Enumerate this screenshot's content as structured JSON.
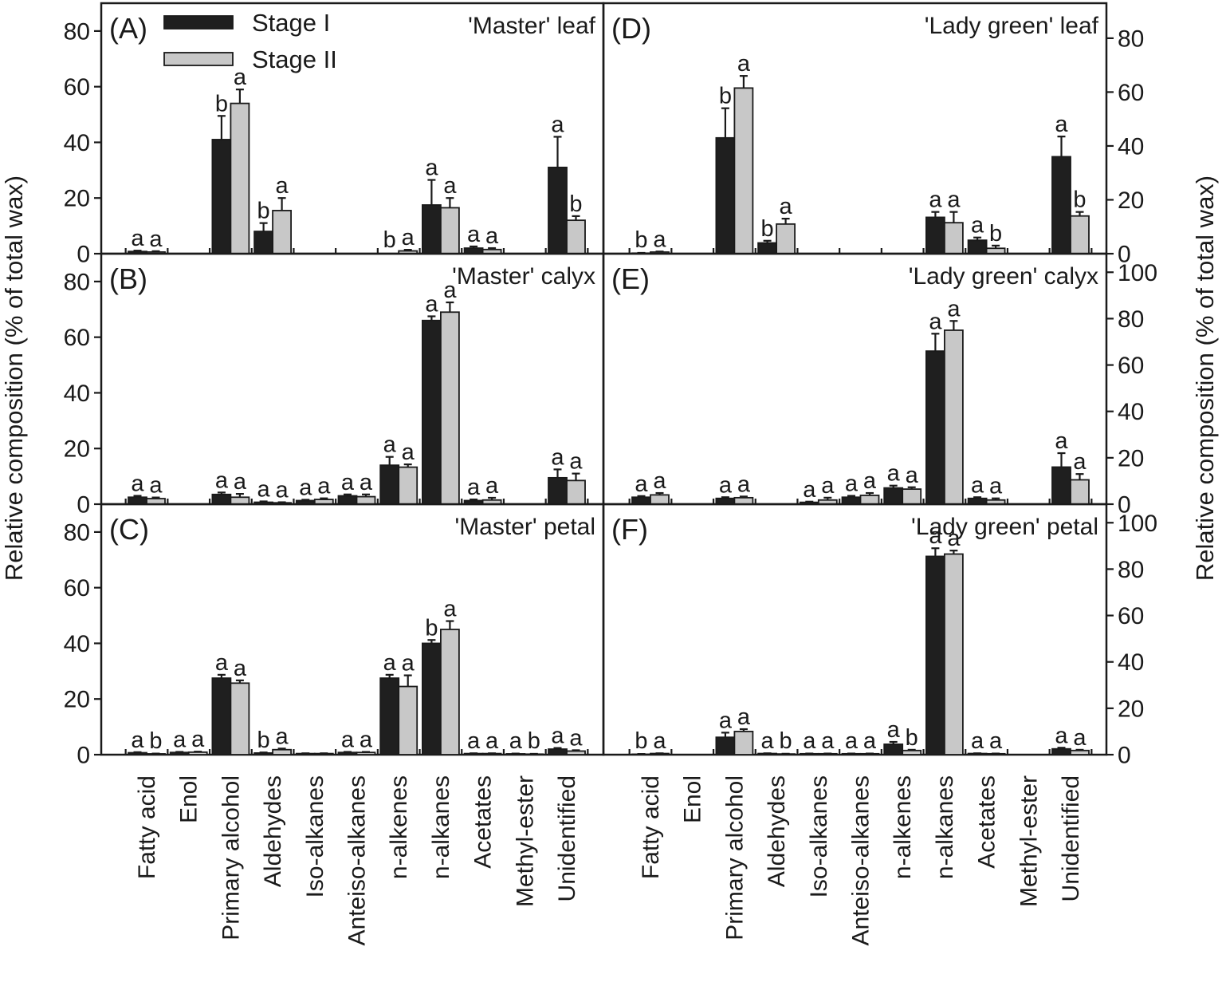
{
  "chart_data": {
    "type": "bar",
    "ylabel_left": "Relative composition (% of total wax)",
    "ylabel_right": "Relative composition (% of total wax)",
    "categories": [
      "Fatty acid",
      "Enol",
      "Primary alcohol",
      "Aldehydes",
      "Iso-alkanes",
      "Anteiso-alkanes",
      "n-alkenes",
      "n-alkanes",
      "Acetates",
      "Methyl-ester",
      "Unidentified"
    ],
    "legend": {
      "position": "top-left",
      "entries": [
        {
          "name": "Stage I",
          "color": "#1f1f1f"
        },
        {
          "name": "Stage II",
          "color": "#c8c8c8"
        }
      ]
    },
    "panels": [
      {
        "label": "(A)",
        "title": "'Master' leaf",
        "ylim": [
          0,
          90
        ],
        "yticks": [
          0,
          20,
          40,
          60,
          80
        ],
        "axis_side": "left",
        "series": [
          {
            "name": "Stage I",
            "values": [
              0.8,
              null,
              41,
              8,
              null,
              null,
              null,
              17.5,
              2,
              null,
              31
            ],
            "errors": [
              0.3,
              null,
              8.5,
              3,
              null,
              null,
              null,
              9,
              0.6,
              null,
              11
            ],
            "letters": [
              "a",
              "",
              "b",
              "b",
              "",
              "",
              "b",
              "a",
              "a",
              "",
              "a"
            ]
          },
          {
            "name": "Stage II",
            "values": [
              0.6,
              null,
              54,
              15.5,
              null,
              null,
              1,
              16.5,
              1.5,
              null,
              12
            ],
            "errors": [
              0.3,
              null,
              5,
              4.5,
              null,
              null,
              0.4,
              3.5,
              0.5,
              null,
              1.5
            ],
            "letters": [
              "a",
              "",
              "a",
              "a",
              "",
              "",
              "a",
              "a",
              "a",
              "",
              "b"
            ]
          }
        ]
      },
      {
        "label": "(B)",
        "title": "'Master' calyx",
        "ylim": [
          0,
          90
        ],
        "yticks": [
          0,
          20,
          40,
          60,
          80
        ],
        "axis_side": "left",
        "series": [
          {
            "name": "Stage I",
            "values": [
              2.5,
              null,
              3.5,
              0.7,
              1.3,
              3,
              14,
              66,
              1.3,
              null,
              9.5
            ],
            "errors": [
              0.5,
              null,
              0.7,
              0.3,
              0.3,
              0.5,
              3,
              1.5,
              0.4,
              null,
              3
            ],
            "letters": [
              "a",
              "",
              "a",
              "a",
              "a",
              "a",
              "a",
              "a",
              "a",
              "",
              "a"
            ]
          },
          {
            "name": "Stage II",
            "values": [
              2,
              null,
              2.5,
              0.5,
              1.7,
              2.7,
              13.3,
              69,
              1.5,
              null,
              8.5
            ],
            "errors": [
              0.4,
              null,
              1.2,
              0.2,
              0.4,
              0.8,
              1,
              3.5,
              0.8,
              null,
              2.5
            ],
            "letters": [
              "a",
              "",
              "a",
              "a",
              "a",
              "a",
              "a",
              "a",
              "a",
              "",
              "a"
            ]
          }
        ]
      },
      {
        "label": "(C)",
        "title": "'Master' petal",
        "ylim": [
          0,
          90
        ],
        "yticks": [
          0,
          20,
          40,
          60,
          80
        ],
        "axis_side": "left",
        "series": [
          {
            "name": "Stage I",
            "values": [
              0.7,
              0.8,
              27.5,
              0.6,
              0.4,
              0.8,
              27.5,
              40,
              0.4,
              0.3,
              2
            ],
            "errors": [
              0.2,
              0.2,
              1.2,
              0.2,
              0.1,
              0.2,
              1.2,
              1.2,
              0.1,
              0.1,
              0.4
            ],
            "letters": [
              "a",
              "a",
              "a",
              "b",
              "",
              "a",
              "a",
              "b",
              "a",
              "a",
              "a"
            ]
          },
          {
            "name": "Stage II",
            "values": [
              0.3,
              0.9,
              25.7,
              1.8,
              0.4,
              0.8,
              24.5,
              45,
              0.4,
              0.2,
              1.3
            ],
            "errors": [
              0.1,
              0.2,
              1,
              0.4,
              0.1,
              0.2,
              4,
              3,
              0.1,
              0.1,
              0.3
            ],
            "letters": [
              "b",
              "a",
              "a",
              "a",
              "",
              "a",
              "a",
              "a",
              "a",
              "b",
              "a"
            ]
          }
        ]
      },
      {
        "label": "(D)",
        "title": "'Lady green' leaf",
        "ylim": [
          0,
          93
        ],
        "yticks": [
          0,
          20,
          40,
          60,
          80
        ],
        "axis_side": "right",
        "series": [
          {
            "name": "Stage I",
            "values": [
              0.2,
              null,
              43,
              4,
              null,
              null,
              null,
              13.5,
              5,
              null,
              36
            ],
            "errors": [
              0.1,
              null,
              11,
              0.8,
              null,
              null,
              null,
              2,
              1,
              null,
              7.5
            ],
            "letters": [
              "b",
              "",
              "b",
              "b",
              "",
              "",
              "",
              "a",
              "a",
              "",
              "a"
            ]
          },
          {
            "name": "Stage II",
            "values": [
              0.6,
              null,
              61.5,
              11,
              null,
              null,
              null,
              11.5,
              2,
              null,
              14
            ],
            "errors": [
              0.2,
              null,
              4.5,
              2,
              null,
              null,
              null,
              4,
              1,
              null,
              1.5
            ],
            "letters": [
              "a",
              "",
              "a",
              "a",
              "",
              "",
              "",
              "a",
              "b",
              "",
              "b"
            ]
          }
        ]
      },
      {
        "label": "(E)",
        "title": "'Lady green' calyx",
        "ylim": [
          0,
          108
        ],
        "yticks": [
          0,
          20,
          40,
          60,
          80,
          100
        ],
        "axis_side": "right",
        "series": [
          {
            "name": "Stage I",
            "values": [
              3,
              null,
              2.5,
              null,
              0.8,
              3,
              7,
              66,
              2.5,
              null,
              16
            ],
            "errors": [
              0.5,
              null,
              0.5,
              null,
              0.3,
              0.6,
              1,
              7.5,
              0.5,
              null,
              6
            ],
            "letters": [
              "a",
              "",
              "a",
              "",
              "a",
              "a",
              "a",
              "a",
              "a",
              "",
              "a"
            ]
          },
          {
            "name": "Stage II",
            "values": [
              4,
              null,
              2.8,
              null,
              1.8,
              3.8,
              6.5,
              75,
              1.8,
              null,
              10.5
            ],
            "errors": [
              0.8,
              null,
              0.5,
              null,
              1,
              1,
              0.8,
              4,
              0.7,
              null,
              2.5
            ],
            "letters": [
              "a",
              "",
              "a",
              "",
              "a",
              "a",
              "a",
              "a",
              "a",
              "",
              "a"
            ]
          }
        ]
      },
      {
        "label": "(F)",
        "title": "'Lady green' petal",
        "ylim": [
          0,
          108
        ],
        "yticks": [
          0,
          20,
          40,
          60,
          80,
          100
        ],
        "axis_side": "right",
        "series": [
          {
            "name": "Stage I",
            "values": [
              0.2,
              null,
              7.5,
              0.5,
              0.4,
              0.4,
              4.5,
              85.5,
              0.5,
              null,
              2.5
            ],
            "errors": [
              0.1,
              null,
              2,
              0.1,
              0.1,
              0.1,
              1,
              3.5,
              0.1,
              null,
              0.5
            ],
            "letters": [
              "b",
              "",
              "a",
              "a",
              "a",
              "a",
              "a",
              "a",
              "a",
              "",
              "a"
            ]
          },
          {
            "name": "Stage II",
            "values": [
              0.5,
              null,
              10,
              0.3,
              0.4,
              0.4,
              1.8,
              86.5,
              0.4,
              null,
              1.8
            ],
            "errors": [
              0.1,
              null,
              1,
              0.1,
              0.1,
              0.1,
              0.3,
              1.5,
              0.1,
              null,
              0.3
            ],
            "letters": [
              "a",
              "",
              "a",
              "b",
              "a",
              "a",
              "b",
              "a",
              "a",
              "",
              "a"
            ]
          }
        ]
      }
    ]
  }
}
